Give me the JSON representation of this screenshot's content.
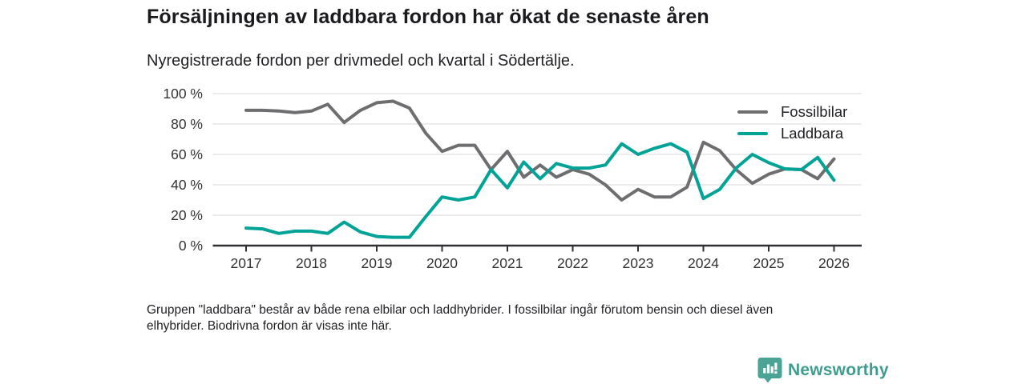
{
  "title": "Försäljningen av laddbara fordon har ökat de senaste åren",
  "subtitle": "Nyregistrerade fordon per drivmedel och kvartal i Södertälje.",
  "legend": [
    {
      "label": "Fossilbilar",
      "color": "#6e6e71"
    },
    {
      "label": "Laddbara",
      "color": "#00a396"
    }
  ],
  "footnote": {
    "line1": "Gruppen \"laddbara\" består av både rena elbilar och laddhybrider. I fossilbilar ingår förutom bensin och diesel även",
    "line2": "elhybrider. Biodrivna fordon är visas inte här."
  },
  "branding": {
    "name": "Newsworthy",
    "icon": "bar-chart-pin-icon",
    "color": "#3f9c8e",
    "icon_color": "#4aa394"
  },
  "colors": {
    "fossil_line": "#6e6e71",
    "laddbara_line": "#00a396",
    "axis": "#2f2f33",
    "gridline": "#d9d9dc",
    "tick_label": "#333333",
    "background": "#ffffff"
  },
  "chart_data": {
    "type": "line",
    "unit": "%",
    "x_start": "2017-Q1",
    "x_interval": "quarter",
    "x_tick_labels": [
      "2017",
      "2018",
      "2019",
      "2020",
      "2021",
      "2022",
      "2023",
      "2024",
      "2025",
      "2026"
    ],
    "y_ticks": [
      {
        "value": 0,
        "label": "0 %"
      },
      {
        "value": 20,
        "label": "20 %"
      },
      {
        "value": 40,
        "label": "40 %"
      },
      {
        "value": 60,
        "label": "60 %"
      },
      {
        "value": 80,
        "label": "80 %"
      },
      {
        "value": 100,
        "label": "100 %"
      }
    ],
    "ylim": [
      0,
      100
    ],
    "grid": true,
    "legend_position": "top-right",
    "series": [
      {
        "name": "Fossilbilar",
        "color": "#6e6e71",
        "values": [
          89,
          89,
          88.5,
          87.5,
          88.5,
          93,
          81,
          89,
          94,
          95,
          90.5,
          74,
          62,
          66,
          66,
          50,
          62,
          45,
          53,
          45,
          50,
          47,
          40,
          30,
          37,
          32,
          32,
          38.5,
          68,
          62.5,
          50,
          41,
          47,
          50.5,
          50,
          44,
          57
        ]
      },
      {
        "name": "Laddbara",
        "color": "#00a396",
        "values": [
          11.5,
          11,
          8,
          9.5,
          9.5,
          8,
          15.5,
          9,
          6,
          5.5,
          5.5,
          19,
          32,
          30,
          32,
          50,
          38,
          55,
          44,
          54,
          51,
          51,
          53,
          67,
          60,
          64,
          67,
          61.5,
          31,
          37,
          51,
          60,
          54.5,
          50.5,
          50,
          58,
          43
        ]
      }
    ]
  }
}
